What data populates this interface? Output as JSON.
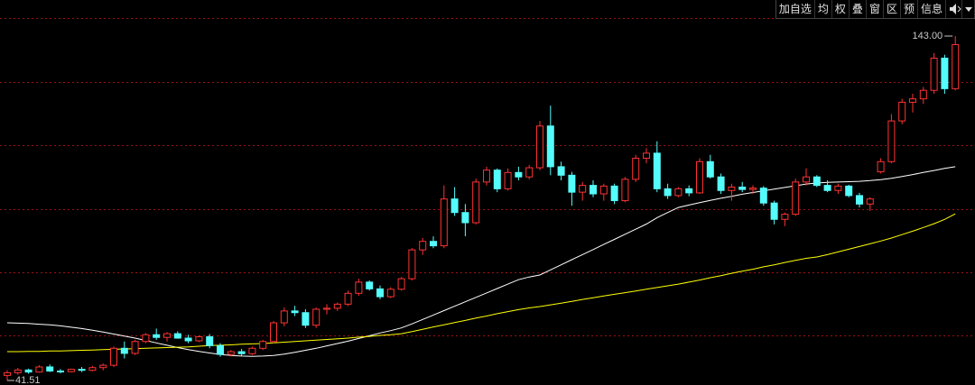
{
  "toolbar": {
    "buttons": [
      "加自选",
      "均",
      "权",
      "叠",
      "窗",
      "区",
      "预",
      "信息"
    ]
  },
  "chart_data": {
    "type": "candlestick",
    "ylim": [
      40.18,
      153.63
    ],
    "grid": true,
    "gridlines": [
      148.3,
      129.5,
      110.9,
      92.0,
      73.4,
      54.8
    ],
    "grid_color": "#a01010",
    "up_color": "#ff3232",
    "down_color": "#54fcfc",
    "ohlc": [
      [
        43.0,
        44.5,
        41.51,
        43.8
      ],
      [
        43.8,
        45.2,
        43.2,
        44.6
      ],
      [
        44.6,
        45.0,
        43.5,
        44.0
      ],
      [
        44.0,
        46.0,
        43.8,
        45.5
      ],
      [
        45.5,
        46.2,
        44.0,
        44.3
      ],
      [
        44.3,
        44.9,
        43.6,
        44.1
      ],
      [
        44.1,
        45.0,
        43.9,
        44.8
      ],
      [
        44.8,
        45.5,
        44.0,
        44.5
      ],
      [
        44.5,
        45.8,
        44.2,
        45.3
      ],
      [
        45.3,
        46.5,
        44.5,
        46.0
      ],
      [
        46.0,
        51.5,
        45.5,
        51.0
      ],
      [
        51.0,
        53.0,
        48.0,
        49.5
      ],
      [
        49.5,
        53.5,
        49.0,
        53.0
      ],
      [
        53.0,
        55.5,
        52.5,
        55.0
      ],
      [
        55.0,
        56.8,
        53.5,
        54.2
      ],
      [
        54.2,
        55.8,
        53.0,
        55.3
      ],
      [
        55.3,
        56.0,
        53.8,
        54.0
      ],
      [
        54.0,
        55.0,
        52.5,
        53.2
      ],
      [
        53.2,
        54.8,
        52.8,
        54.4
      ],
      [
        54.4,
        55.2,
        51.0,
        51.8
      ],
      [
        51.8,
        52.5,
        48.5,
        49.2
      ],
      [
        49.2,
        50.5,
        48.6,
        50.0
      ],
      [
        50.0,
        50.8,
        48.8,
        49.4
      ],
      [
        49.4,
        51.5,
        49.0,
        51.0
      ],
      [
        51.0,
        53.5,
        50.5,
        53.0
      ],
      [
        53.0,
        59.0,
        52.5,
        58.5
      ],
      [
        58.5,
        63.0,
        57.5,
        62.0
      ],
      [
        62.0,
        63.5,
        60.5,
        61.5
      ],
      [
        61.5,
        62.5,
        57.0,
        57.8
      ],
      [
        57.8,
        63.0,
        57.0,
        62.5
      ],
      [
        62.5,
        64.0,
        61.0,
        62.8
      ],
      [
        62.8,
        64.5,
        62.0,
        64.0
      ],
      [
        64.0,
        68.0,
        63.5,
        67.2
      ],
      [
        67.2,
        71.5,
        66.5,
        70.5
      ],
      [
        70.5,
        71.0,
        68.0,
        68.5
      ],
      [
        68.5,
        69.5,
        65.5,
        66.2
      ],
      [
        66.2,
        69.0,
        65.8,
        68.4
      ],
      [
        68.4,
        72.0,
        68.0,
        71.5
      ],
      [
        71.5,
        80.5,
        71.0,
        80.0
      ],
      [
        80.0,
        83.5,
        78.5,
        82.5
      ],
      [
        82.5,
        84.0,
        80.5,
        81.2
      ],
      [
        81.2,
        99.0,
        80.5,
        95.0
      ],
      [
        95.0,
        98.5,
        90.0,
        91.0
      ],
      [
        91.0,
        93.5,
        84.0,
        88.0
      ],
      [
        88.0,
        101.0,
        87.5,
        100.0
      ],
      [
        100.0,
        104.5,
        99.0,
        103.5
      ],
      [
        103.5,
        104.0,
        97.0,
        98.0
      ],
      [
        98.0,
        104.0,
        97.5,
        102.8
      ],
      [
        102.8,
        104.5,
        100.5,
        101.5
      ],
      [
        101.5,
        105.0,
        100.8,
        104.2
      ],
      [
        104.2,
        118.0,
        103.5,
        116.5
      ],
      [
        116.5,
        122.5,
        102.0,
        104.5
      ],
      [
        104.5,
        106.0,
        100.5,
        102.0
      ],
      [
        102.0,
        103.0,
        93.0,
        97.0
      ],
      [
        97.0,
        100.0,
        94.5,
        99.0
      ],
      [
        99.0,
        100.5,
        95.5,
        96.5
      ],
      [
        96.5,
        99.5,
        94.5,
        98.8
      ],
      [
        98.8,
        99.5,
        93.5,
        94.5
      ],
      [
        94.5,
        101.5,
        94.0,
        100.8
      ],
      [
        100.8,
        108.0,
        100.0,
        107.0
      ],
      [
        107.0,
        110.0,
        105.5,
        108.5
      ],
      [
        108.5,
        112.0,
        97.0,
        98.0
      ],
      [
        98.0,
        99.5,
        95.0,
        96.0
      ],
      [
        96.0,
        98.5,
        95.5,
        98.0
      ],
      [
        98.0,
        99.0,
        95.8,
        96.8
      ],
      [
        96.8,
        107.0,
        96.5,
        106.0
      ],
      [
        106.0,
        108.0,
        101.0,
        101.5
      ],
      [
        101.5,
        102.5,
        96.5,
        97.5
      ],
      [
        97.5,
        99.5,
        94.5,
        98.5
      ],
      [
        98.5,
        100.0,
        97.0,
        97.8
      ],
      [
        97.8,
        99.0,
        96.5,
        98.2
      ],
      [
        98.2,
        98.8,
        93.0,
        93.8
      ],
      [
        93.8,
        94.5,
        87.5,
        89.0
      ],
      [
        89.0,
        91.0,
        87.0,
        90.5
      ],
      [
        90.5,
        101.0,
        90.0,
        100.0
      ],
      [
        100.0,
        104.0,
        99.0,
        101.5
      ],
      [
        101.5,
        102.0,
        98.5,
        99.0
      ],
      [
        99.0,
        100.5,
        97.0,
        97.5
      ],
      [
        97.5,
        99.5,
        96.5,
        98.8
      ],
      [
        98.8,
        99.2,
        95.5,
        96.0
      ],
      [
        96.0,
        96.8,
        92.5,
        93.5
      ],
      [
        93.5,
        95.5,
        91.5,
        95.0
      ],
      [
        103.0,
        107.0,
        102.5,
        106.0
      ],
      [
        106.0,
        120.0,
        105.5,
        118.0
      ],
      [
        118.0,
        124.5,
        117.0,
        123.5
      ],
      [
        123.5,
        126.0,
        120.5,
        124.5
      ],
      [
        124.5,
        128.0,
        123.0,
        127.0
      ],
      [
        127.0,
        138.0,
        126.0,
        136.5
      ],
      [
        136.5,
        137.5,
        126.0,
        127.5
      ],
      [
        127.5,
        143.0,
        127.0,
        140.5
      ]
    ],
    "moving_averages": [
      {
        "color": "#ffffff",
        "values": [
          58.5,
          58.4,
          58.3,
          58.1,
          57.9,
          57.6,
          57.2,
          56.8,
          56.3,
          55.8,
          55.2,
          54.6,
          54.0,
          53.3,
          52.6,
          51.9,
          51.2,
          50.6,
          50.1,
          49.6,
          49.2,
          48.9,
          48.7,
          48.6,
          48.7,
          48.9,
          49.3,
          49.8,
          50.4,
          51.0,
          51.7,
          52.4,
          53.1,
          53.9,
          54.7,
          55.5,
          56.2,
          57.0,
          58.2,
          59.5,
          60.8,
          62.1,
          63.4,
          64.7,
          66.0,
          67.3,
          68.6,
          69.9,
          71.2,
          72.0,
          72.6,
          74.1,
          75.6,
          77.1,
          78.6,
          80.1,
          81.6,
          83.1,
          84.6,
          86.1,
          87.6,
          89.5,
          91.0,
          92.5,
          93.2,
          93.9,
          94.6,
          95.2,
          95.8,
          96.4,
          96.9,
          97.4,
          97.9,
          98.4,
          98.9,
          99.4,
          99.7,
          99.9,
          100.0,
          100.1,
          100.2,
          100.4,
          100.7,
          101.1,
          101.6,
          102.2,
          102.8,
          103.4,
          104.0,
          104.5
        ]
      },
      {
        "color": "#ffff00",
        "values": [
          50.0,
          50.0,
          50.1,
          50.1,
          50.2,
          50.2,
          50.3,
          50.4,
          50.5,
          50.6,
          50.7,
          50.8,
          50.9,
          51.0,
          51.1,
          51.2,
          51.3,
          51.4,
          51.6,
          51.8,
          51.9,
          52.0,
          52.2,
          52.3,
          52.4,
          52.6,
          52.8,
          53.0,
          53.2,
          53.4,
          53.6,
          53.8,
          54.0,
          54.3,
          54.5,
          54.8,
          55.0,
          55.3,
          55.9,
          56.6,
          57.3,
          57.9,
          58.6,
          59.2,
          59.9,
          60.5,
          61.2,
          61.8,
          62.4,
          62.9,
          63.3,
          63.8,
          64.3,
          64.8,
          65.4,
          65.9,
          66.4,
          66.9,
          67.4,
          67.9,
          68.4,
          68.9,
          69.4,
          69.9,
          70.5,
          71.1,
          71.8,
          72.4,
          73.1,
          73.7,
          74.3,
          75.0,
          75.6,
          76.3,
          76.9,
          77.5,
          77.9,
          78.6,
          79.4,
          80.2,
          81.0,
          81.8,
          82.6,
          83.5,
          84.5,
          85.5,
          86.6,
          87.7,
          89.0,
          90.6
        ]
      }
    ],
    "annotations": [
      {
        "value": 143,
        "label": "143.00"
      },
      {
        "value": 41.51,
        "label": "41.51"
      }
    ]
  }
}
